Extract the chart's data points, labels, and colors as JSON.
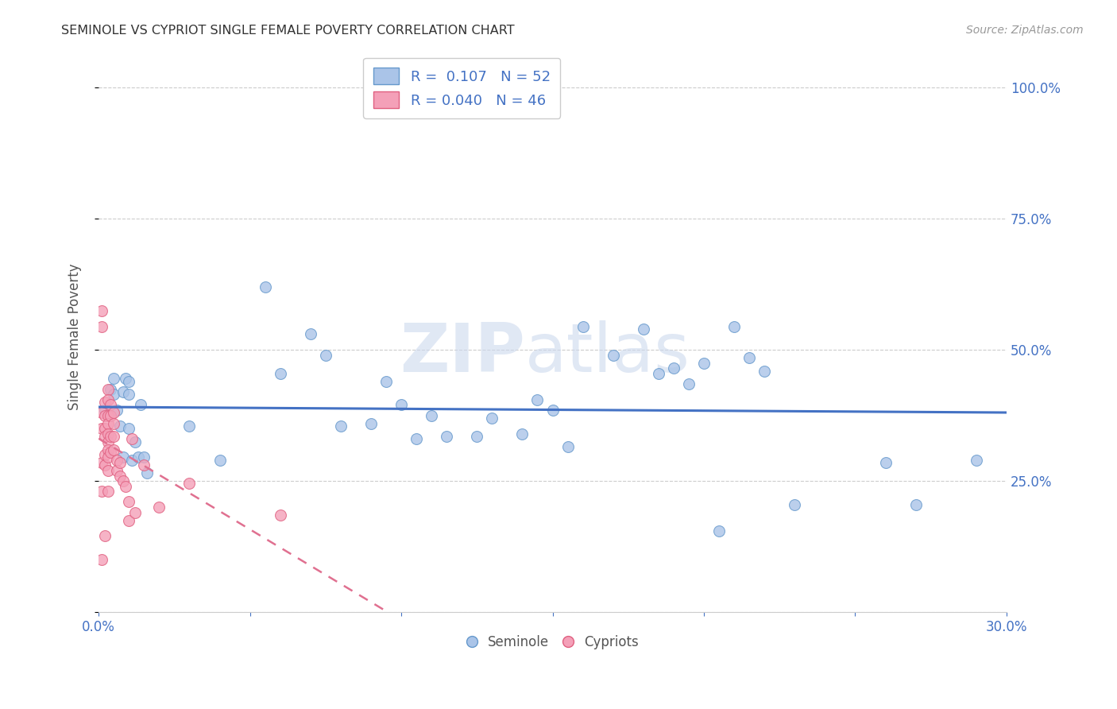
{
  "title": "SEMINOLE VS CYPRIOT SINGLE FEMALE POVERTY CORRELATION CHART",
  "source": "Source: ZipAtlas.com",
  "ylabel": "Single Female Poverty",
  "xlabel": "",
  "watermark_zip": "ZIP",
  "watermark_atlas": "atlas",
  "xlim": [
    0.0,
    0.3
  ],
  "ylim": [
    0.0,
    1.05
  ],
  "yticks": [
    0.0,
    0.25,
    0.5,
    0.75,
    1.0
  ],
  "ytick_labels": [
    "",
    "25.0%",
    "50.0%",
    "75.0%",
    "100.0%"
  ],
  "xticks": [
    0.0,
    0.05,
    0.1,
    0.15,
    0.2,
    0.25,
    0.3
  ],
  "xtick_labels": [
    "0.0%",
    "",
    "",
    "",
    "",
    "",
    "30.0%"
  ],
  "seminole_color": "#aac4e8",
  "cypriot_color": "#f4a0b8",
  "seminole_edge_color": "#6699cc",
  "cypriot_edge_color": "#e06080",
  "trend_seminole_color": "#4472c4",
  "trend_cypriot_color": "#e07090",
  "grid_color": "#cccccc",
  "title_color": "#333333",
  "axis_color": "#4472c4",
  "seminole_x": [
    0.002,
    0.004,
    0.005,
    0.005,
    0.006,
    0.007,
    0.008,
    0.008,
    0.009,
    0.01,
    0.01,
    0.01,
    0.011,
    0.012,
    0.013,
    0.014,
    0.015,
    0.016,
    0.03,
    0.04,
    0.055,
    0.06,
    0.07,
    0.075,
    0.08,
    0.09,
    0.095,
    0.1,
    0.105,
    0.11,
    0.115,
    0.125,
    0.13,
    0.14,
    0.145,
    0.15,
    0.155,
    0.16,
    0.17,
    0.18,
    0.185,
    0.19,
    0.195,
    0.2,
    0.205,
    0.21,
    0.215,
    0.22,
    0.23,
    0.26,
    0.27,
    0.29
  ],
  "seminole_y": [
    0.385,
    0.425,
    0.445,
    0.415,
    0.385,
    0.355,
    0.42,
    0.295,
    0.445,
    0.44,
    0.415,
    0.35,
    0.29,
    0.325,
    0.295,
    0.395,
    0.295,
    0.265,
    0.355,
    0.29,
    0.62,
    0.455,
    0.53,
    0.49,
    0.355,
    0.36,
    0.44,
    0.395,
    0.33,
    0.375,
    0.335,
    0.335,
    0.37,
    0.34,
    0.405,
    0.385,
    0.315,
    0.545,
    0.49,
    0.54,
    0.455,
    0.465,
    0.435,
    0.475,
    0.155,
    0.545,
    0.485,
    0.46,
    0.205,
    0.285,
    0.205,
    0.29
  ],
  "cypriot_x": [
    0.001,
    0.001,
    0.001,
    0.001,
    0.001,
    0.001,
    0.001,
    0.002,
    0.002,
    0.002,
    0.002,
    0.002,
    0.002,
    0.002,
    0.003,
    0.003,
    0.003,
    0.003,
    0.003,
    0.003,
    0.003,
    0.003,
    0.003,
    0.003,
    0.004,
    0.004,
    0.004,
    0.004,
    0.005,
    0.005,
    0.005,
    0.005,
    0.006,
    0.006,
    0.007,
    0.007,
    0.008,
    0.009,
    0.01,
    0.01,
    0.011,
    0.012,
    0.015,
    0.02,
    0.03,
    0.06
  ],
  "cypriot_y": [
    0.575,
    0.545,
    0.38,
    0.35,
    0.285,
    0.23,
    0.1,
    0.4,
    0.375,
    0.35,
    0.335,
    0.3,
    0.28,
    0.145,
    0.425,
    0.405,
    0.375,
    0.36,
    0.34,
    0.325,
    0.31,
    0.295,
    0.27,
    0.23,
    0.395,
    0.375,
    0.335,
    0.305,
    0.38,
    0.36,
    0.335,
    0.31,
    0.29,
    0.27,
    0.285,
    0.26,
    0.25,
    0.24,
    0.21,
    0.175,
    0.33,
    0.19,
    0.28,
    0.2,
    0.245,
    0.185
  ],
  "background_color": "#ffffff"
}
